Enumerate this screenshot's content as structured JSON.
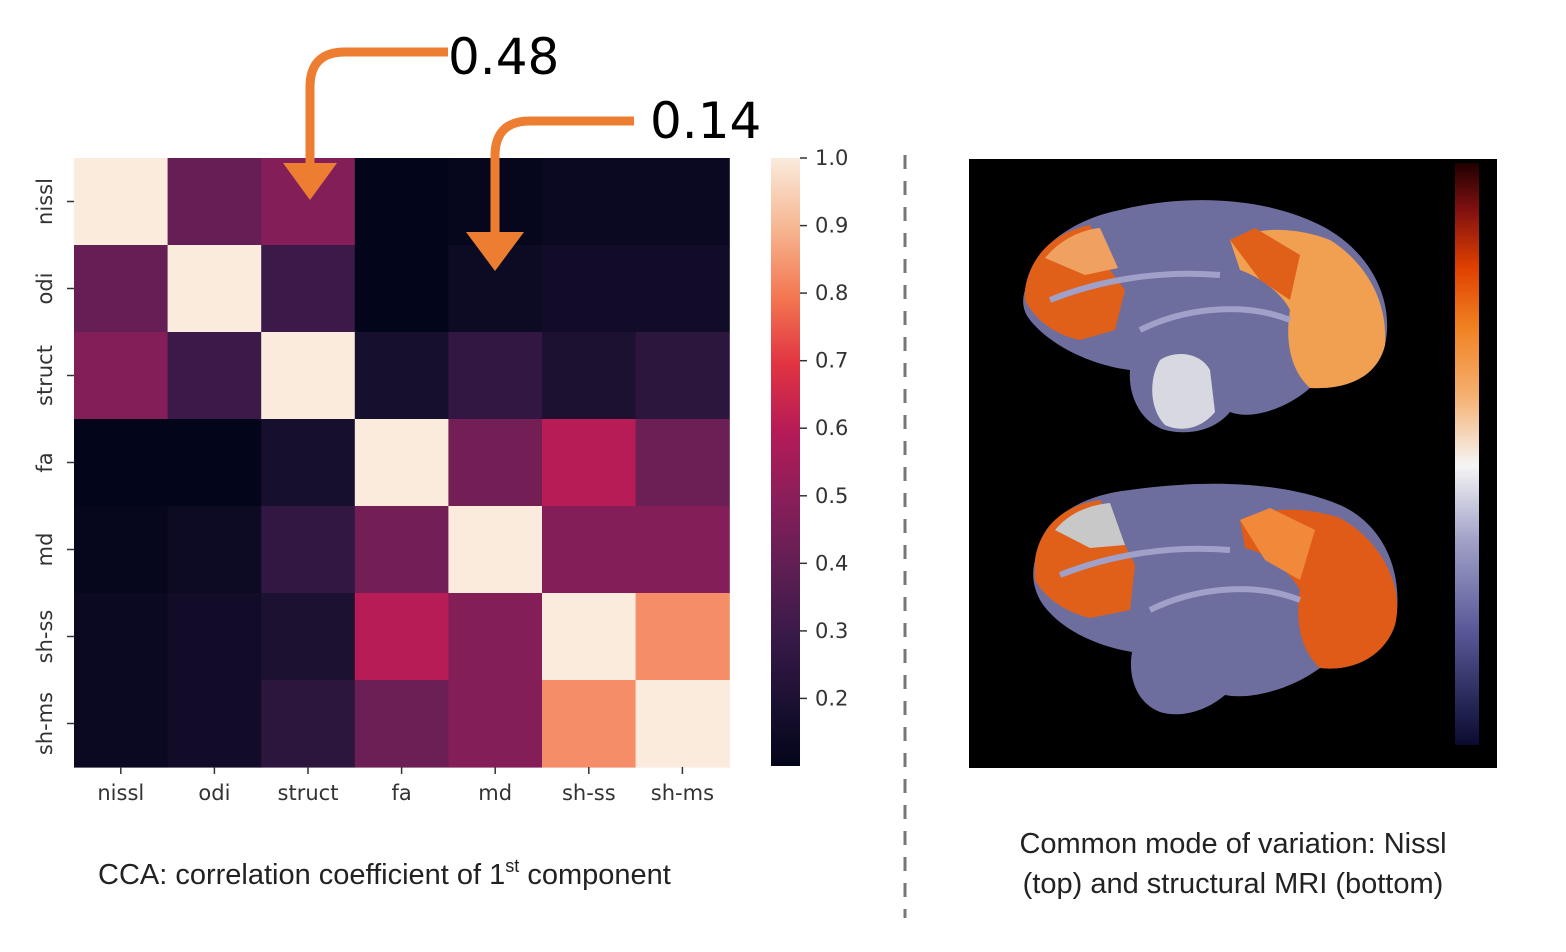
{
  "chart_data": {
    "type": "heatmap",
    "rows": [
      "nissl",
      "odi",
      "struct",
      "fa",
      "md",
      "sh-ss",
      "sh-ms"
    ],
    "cols": [
      "nissl",
      "odi",
      "struct",
      "fa",
      "md",
      "sh-ss",
      "sh-ms"
    ],
    "values": [
      [
        1.0,
        0.41,
        0.48,
        0.1,
        0.11,
        0.13,
        0.13
      ],
      [
        0.41,
        1.0,
        0.3,
        0.1,
        0.14,
        0.16,
        0.16
      ],
      [
        0.48,
        0.3,
        1.0,
        0.18,
        0.27,
        0.2,
        0.25
      ],
      [
        0.1,
        0.1,
        0.18,
        1.0,
        0.44,
        0.6,
        0.42
      ],
      [
        0.11,
        0.14,
        0.27,
        0.44,
        1.0,
        0.48,
        0.48
      ],
      [
        0.13,
        0.16,
        0.2,
        0.6,
        0.48,
        1.0,
        0.83
      ],
      [
        0.13,
        0.16,
        0.25,
        0.42,
        0.48,
        0.83,
        1.0
      ]
    ],
    "colorbar_ticks": [
      "1.0",
      "0.9",
      "0.8",
      "0.7",
      "0.6",
      "0.5",
      "0.4",
      "0.3",
      "0.2"
    ],
    "colorbar_range": [
      0.1,
      1.0
    ],
    "colormap": "rocket",
    "annotations": [
      {
        "text": "0.48",
        "cell": [
          "nissl",
          "struct"
        ],
        "color": "#ed7d31"
      },
      {
        "text": "0.14",
        "cell": [
          "odi",
          "md"
        ],
        "color": "#ed7d31"
      }
    ],
    "caption_main": "CCA: correlation coefficient of 1",
    "caption_sup": "st",
    "caption_end": " component"
  },
  "brain_panel": {
    "caption_line1": "Common mode of variation: Nissl",
    "caption_line2": "(top) and structural MRI (bottom)",
    "background": "#000000",
    "colormap_stops": [
      "#0a0a30",
      "#7878b4",
      "#f5f5f5",
      "#f5a050",
      "#e85010",
      "#801010",
      "#200000"
    ]
  },
  "colors": {
    "arrow": "#ed7d31",
    "divider": "#777777"
  }
}
